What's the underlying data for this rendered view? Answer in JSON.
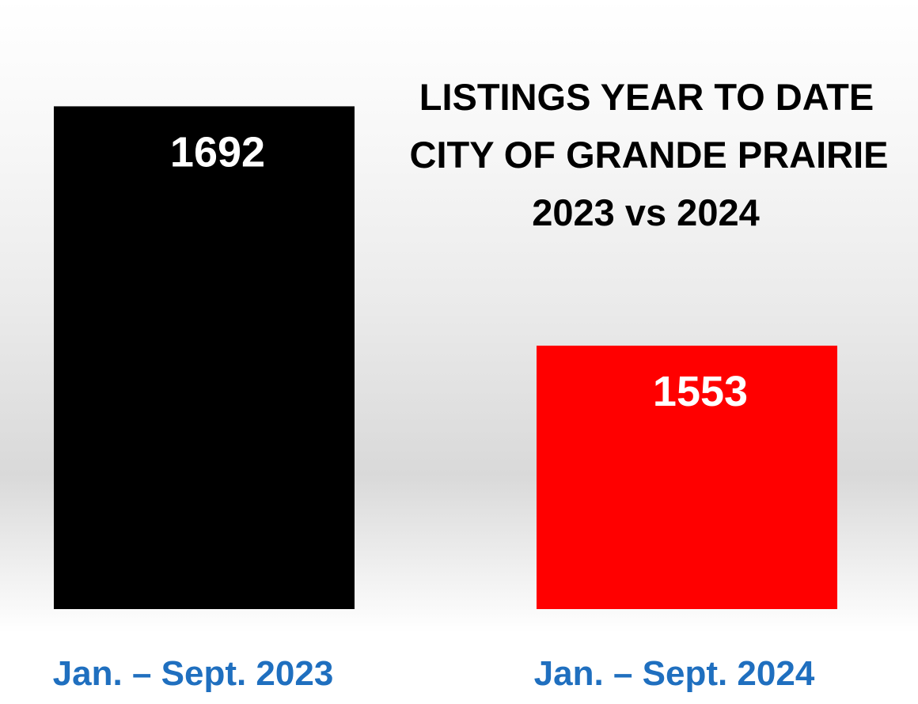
{
  "chart_data": {
    "type": "bar",
    "title_lines": [
      "LISTINGS YEAR TO DATE",
      "CITY OF GRANDE PRAIRIE",
      "2023 vs 2024"
    ],
    "categories": [
      "Jan. – Sept. 2023",
      "Jan. – Sept. 2024"
    ],
    "values": [
      1692,
      1553
    ],
    "colors": [
      "#000000",
      "#ff0000"
    ],
    "value_label_color": "#ffffff",
    "category_label_color": "#1f6fbf",
    "ylim": [
      1400,
      1700
    ],
    "grid": false,
    "legend": "none"
  }
}
